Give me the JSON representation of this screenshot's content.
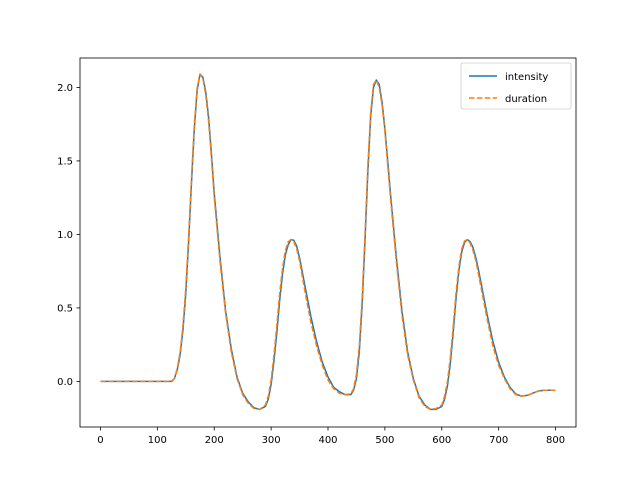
{
  "chart_data": {
    "type": "line",
    "title": "",
    "xlabel": "",
    "ylabel": "",
    "xlim": [
      -36,
      836
    ],
    "ylim": [
      -0.31,
      2.2
    ],
    "x_ticks": [
      0,
      100,
      200,
      300,
      400,
      500,
      600,
      700,
      800
    ],
    "y_ticks": [
      0.0,
      0.5,
      1.0,
      1.5,
      2.0
    ],
    "x_tick_labels": [
      "0",
      "100",
      "200",
      "300",
      "400",
      "500",
      "600",
      "700",
      "800"
    ],
    "y_tick_labels": [
      "0.0",
      "0.5",
      "1.0",
      "1.5",
      "2.0"
    ],
    "grid": false,
    "legend": "top-right",
    "series": [
      {
        "name": "intensity",
        "color": "#1f77b4",
        "dash": "solid",
        "x": [
          0,
          20,
          40,
          60,
          80,
          100,
          120,
          125,
          130,
          135,
          140,
          145,
          150,
          155,
          160,
          165,
          170,
          175,
          180,
          185,
          190,
          195,
          200,
          210,
          220,
          230,
          240,
          250,
          260,
          270,
          280,
          290,
          295,
          300,
          305,
          310,
          315,
          320,
          325,
          330,
          335,
          340,
          345,
          350,
          360,
          370,
          380,
          390,
          400,
          410,
          420,
          430,
          440,
          445,
          450,
          455,
          460,
          465,
          470,
          475,
          480,
          485,
          490,
          495,
          500,
          505,
          510,
          520,
          530,
          540,
          550,
          560,
          570,
          580,
          590,
          600,
          605,
          610,
          615,
          620,
          625,
          630,
          635,
          640,
          645,
          650,
          655,
          660,
          665,
          670,
          680,
          690,
          700,
          710,
          720,
          730,
          740,
          750,
          760,
          770,
          780,
          790,
          800
        ],
        "y": [
          0,
          0,
          0,
          0,
          0,
          0,
          0,
          0,
          0.02,
          0.08,
          0.18,
          0.35,
          0.6,
          0.95,
          1.35,
          1.72,
          1.98,
          2.09,
          2.07,
          1.97,
          1.8,
          1.55,
          1.28,
          0.85,
          0.48,
          0.22,
          0.03,
          -0.08,
          -0.14,
          -0.18,
          -0.19,
          -0.17,
          -0.12,
          -0.02,
          0.14,
          0.33,
          0.55,
          0.73,
          0.86,
          0.93,
          0.965,
          0.96,
          0.92,
          0.84,
          0.64,
          0.44,
          0.27,
          0.13,
          0.03,
          -0.04,
          -0.07,
          -0.09,
          -0.09,
          -0.06,
          0.02,
          0.2,
          0.52,
          0.95,
          1.42,
          1.8,
          2.0,
          2.05,
          2.02,
          1.9,
          1.72,
          1.5,
          1.27,
          0.85,
          0.48,
          0.2,
          0.02,
          -0.1,
          -0.16,
          -0.19,
          -0.19,
          -0.17,
          -0.12,
          -0.03,
          0.12,
          0.33,
          0.56,
          0.75,
          0.88,
          0.945,
          0.965,
          0.95,
          0.91,
          0.84,
          0.75,
          0.65,
          0.45,
          0.27,
          0.13,
          0.03,
          -0.04,
          -0.085,
          -0.1,
          -0.095,
          -0.08,
          -0.065,
          -0.06,
          -0.06,
          -0.06
        ]
      },
      {
        "name": "duration",
        "color": "#ff7f0e",
        "dash": "dashed",
        "x": [
          0,
          20,
          40,
          60,
          80,
          100,
          120,
          125,
          130,
          135,
          140,
          145,
          150,
          155,
          160,
          165,
          170,
          175,
          180,
          185,
          190,
          195,
          200,
          210,
          220,
          230,
          240,
          250,
          260,
          270,
          280,
          290,
          295,
          300,
          305,
          310,
          315,
          320,
          325,
          330,
          335,
          340,
          345,
          350,
          360,
          370,
          380,
          390,
          400,
          410,
          420,
          430,
          440,
          445,
          450,
          455,
          460,
          465,
          470,
          475,
          480,
          485,
          490,
          495,
          500,
          505,
          510,
          520,
          530,
          540,
          550,
          560,
          570,
          580,
          590,
          600,
          605,
          610,
          615,
          620,
          625,
          630,
          635,
          640,
          645,
          650,
          655,
          660,
          665,
          670,
          680,
          690,
          700,
          710,
          720,
          730,
          740,
          750,
          760,
          770,
          780,
          790,
          800
        ],
        "y": [
          0,
          0,
          0,
          0,
          0,
          0,
          0,
          0,
          0.02,
          0.09,
          0.2,
          0.38,
          0.64,
          0.99,
          1.39,
          1.75,
          2.0,
          2.09,
          2.06,
          1.95,
          1.77,
          1.52,
          1.25,
          0.82,
          0.46,
          0.2,
          0.02,
          -0.09,
          -0.15,
          -0.185,
          -0.19,
          -0.16,
          -0.1,
          0.01,
          0.18,
          0.38,
          0.6,
          0.77,
          0.89,
          0.95,
          0.965,
          0.95,
          0.9,
          0.82,
          0.6,
          0.4,
          0.24,
          0.11,
          0.01,
          -0.05,
          -0.08,
          -0.09,
          -0.085,
          -0.05,
          0.05,
          0.24,
          0.57,
          1.0,
          1.47,
          1.83,
          2.02,
          2.05,
          2.0,
          1.88,
          1.7,
          1.47,
          1.24,
          0.82,
          0.45,
          0.18,
          0.01,
          -0.11,
          -0.17,
          -0.19,
          -0.185,
          -0.16,
          -0.1,
          0.0,
          0.16,
          0.37,
          0.6,
          0.78,
          0.9,
          0.955,
          0.965,
          0.94,
          0.89,
          0.82,
          0.72,
          0.62,
          0.42,
          0.24,
          0.11,
          0.02,
          -0.05,
          -0.09,
          -0.1,
          -0.095,
          -0.08,
          -0.065,
          -0.06,
          -0.06,
          -0.06
        ]
      }
    ]
  }
}
